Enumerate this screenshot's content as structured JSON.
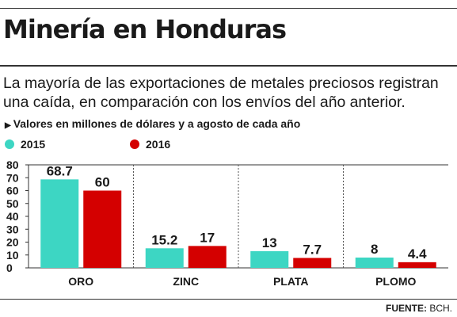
{
  "header": {
    "title": "Minería en Honduras",
    "subtitle": "La mayoría de las exportaciones de metales preciosos registran una caída, en comparación con los envíos del año anterior.",
    "note": "Valores en millones de dólares y a agosto de cada año"
  },
  "colors": {
    "series_2015": "#3dd6c3",
    "series_2016": "#d40000",
    "axis": "#333333"
  },
  "chart_data": {
    "type": "bar",
    "categories": [
      "ORO",
      "ZINC",
      "PLATA",
      "PLOMO"
    ],
    "series": [
      {
        "name": "2015",
        "values": [
          68.7,
          15.2,
          13,
          8
        ],
        "labels": [
          "68.7",
          "15.2",
          "13",
          "8"
        ]
      },
      {
        "name": "2016",
        "values": [
          60,
          17,
          7.7,
          4.4
        ],
        "labels": [
          "60",
          "17",
          "7.7",
          "4.4"
        ]
      }
    ],
    "yticks": [
      0,
      10,
      20,
      30,
      40,
      50,
      60,
      70,
      80
    ],
    "ylim": [
      0,
      80
    ],
    "legend": "top-left",
    "grid": false
  },
  "source": {
    "label": "FUENTE:",
    "value": "BCH."
  }
}
